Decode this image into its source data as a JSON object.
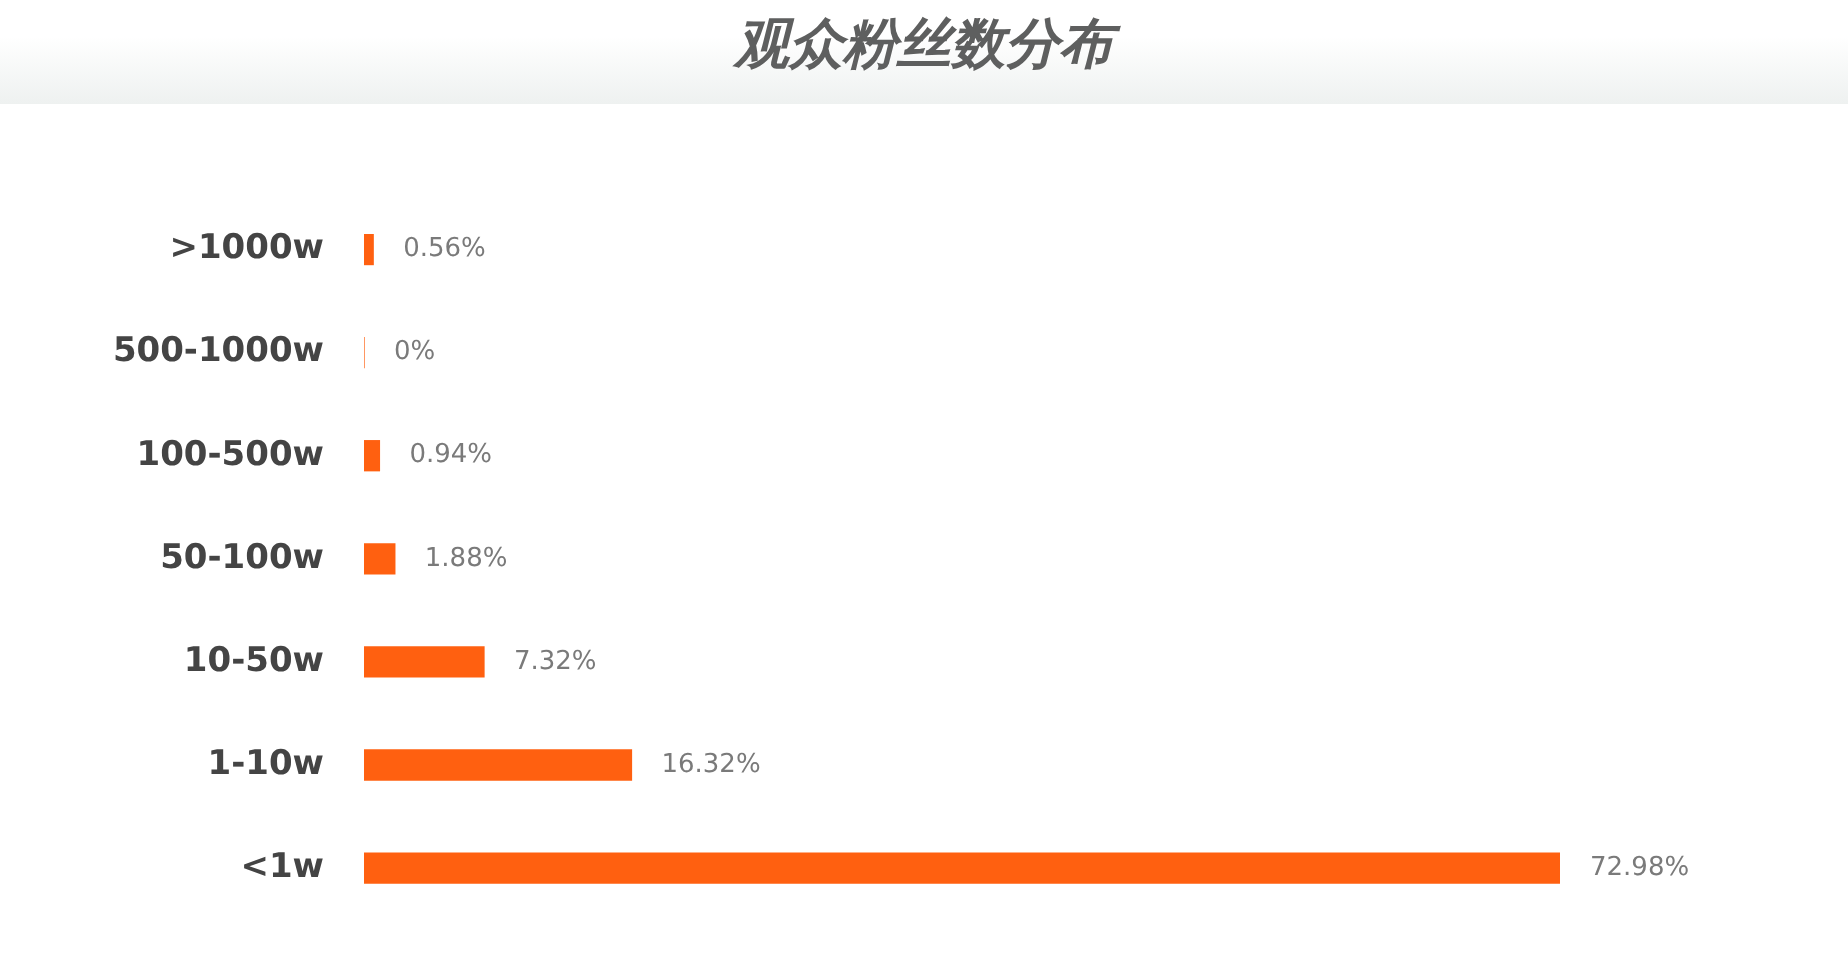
{
  "chart_data": {
    "type": "bar",
    "title": "观众粉丝数分布",
    "orientation": "horizontal",
    "categories": [
      ">1000w",
      "500-1000w",
      "100-500w",
      "50-100w",
      "10-50w",
      "1-10w",
      "<1w"
    ],
    "values": [
      0.56,
      0,
      0.94,
      1.88,
      7.32,
      16.32,
      72.98
    ],
    "color": "#ff6010",
    "value_labels": [
      "0.56%",
      "0%",
      "0.94%",
      "1.88%",
      "7.32%",
      "16.32%",
      "72.98%"
    ]
  }
}
